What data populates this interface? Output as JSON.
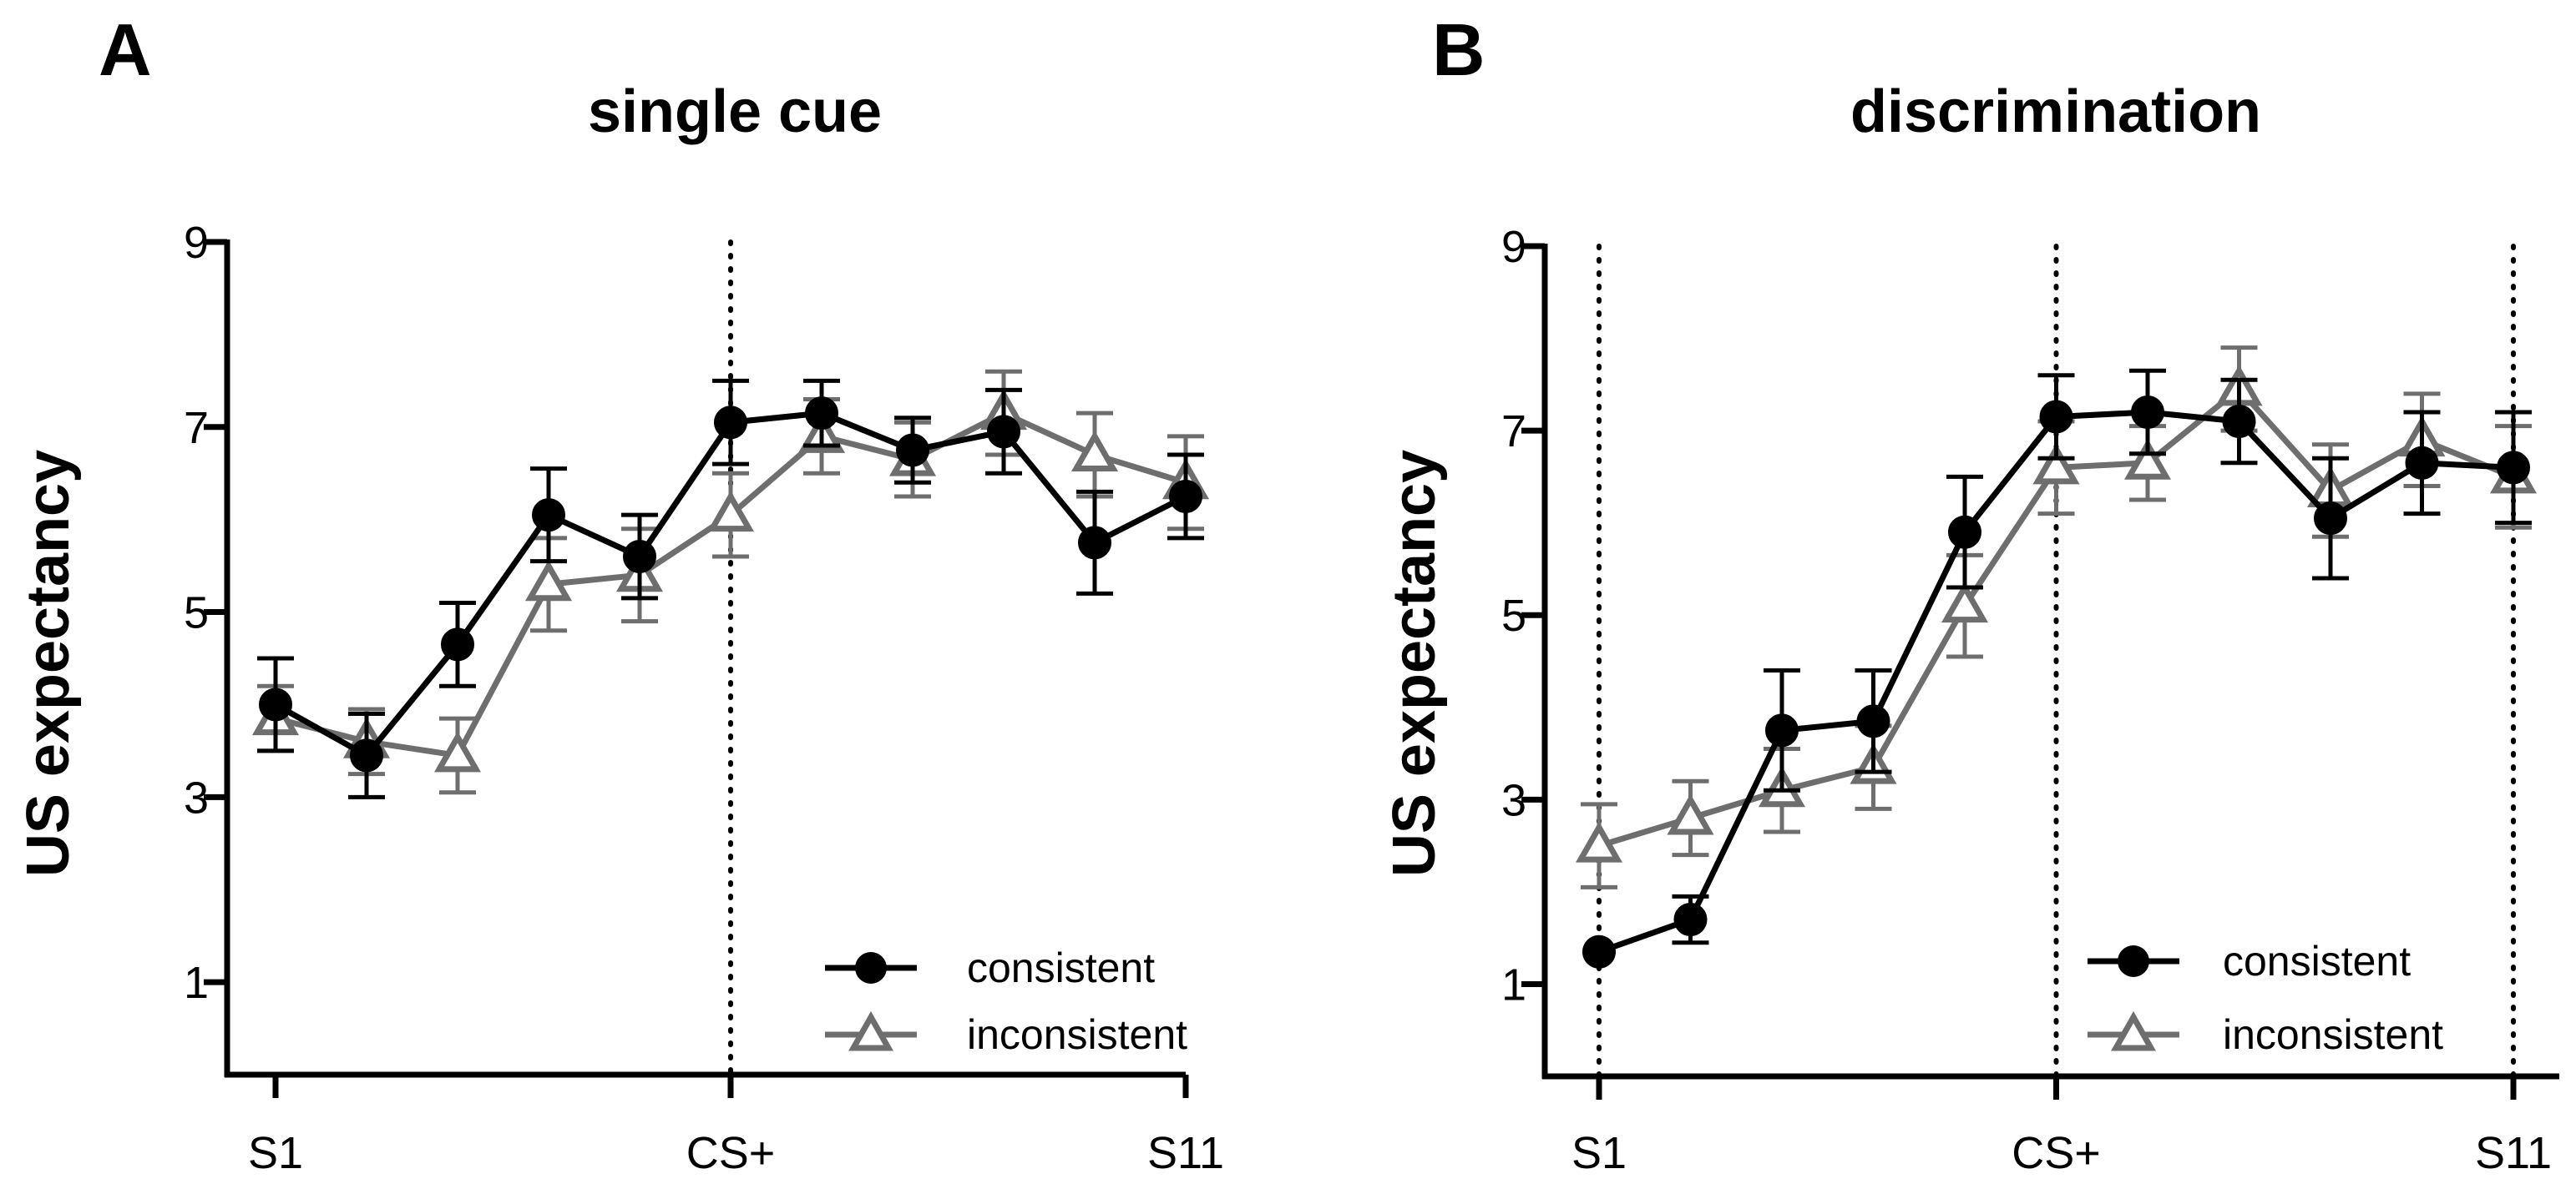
{
  "colors": {
    "consistent": "#000000",
    "inconsistent": "#6e6e6e",
    "axis": "#000000"
  },
  "chart_data": [
    {
      "panel": "A",
      "type": "line",
      "title": "single cue",
      "ylabel": "US expectancy",
      "xlabel": "",
      "ylim": [
        0,
        9
      ],
      "yticks": [
        1,
        3,
        5,
        7,
        9
      ],
      "x": [
        1,
        2,
        3,
        4,
        5,
        6,
        7,
        8,
        9,
        10,
        11
      ],
      "xlim": [
        1,
        11
      ],
      "xtick_labels": [
        {
          "x": 1,
          "label": "S1"
        },
        {
          "x": 6,
          "label": "CS+"
        },
        {
          "x": 11,
          "label": "S11"
        }
      ],
      "reference_lines": [
        6
      ],
      "legend_position": "bottom-right",
      "series": [
        {
          "name": "consistent",
          "marker": "circle",
          "color": "#000000",
          "values": [
            4.0,
            3.45,
            4.65,
            6.05,
            5.6,
            7.05,
            7.15,
            6.75,
            6.95,
            5.75,
            6.25
          ],
          "errors": [
            0.5,
            0.45,
            0.45,
            0.5,
            0.45,
            0.45,
            0.35,
            0.35,
            0.45,
            0.55,
            0.45
          ]
        },
        {
          "name": "inconsistent",
          "marker": "triangle",
          "color": "#6e6e6e",
          "values": [
            3.85,
            3.6,
            3.45,
            5.3,
            5.4,
            6.05,
            6.9,
            6.65,
            7.15,
            6.7,
            6.4
          ],
          "errors": [
            0.35,
            0.35,
            0.4,
            0.5,
            0.5,
            0.45,
            0.4,
            0.4,
            0.45,
            0.45,
            0.5
          ]
        }
      ]
    },
    {
      "panel": "B",
      "type": "line",
      "title": "discrimination",
      "ylabel": "US expectancy",
      "xlabel": "",
      "ylim": [
        0,
        9
      ],
      "yticks": [
        1,
        3,
        5,
        7,
        9
      ],
      "x": [
        1,
        2,
        3,
        4,
        5,
        6,
        7,
        8,
        9,
        10,
        11
      ],
      "xlim": [
        1,
        11
      ],
      "xtick_labels": [
        {
          "x": 1,
          "label": "S1"
        },
        {
          "x": 6,
          "label": "CS+"
        },
        {
          "x": 11,
          "label": "S11"
        }
      ],
      "reference_lines": [
        1,
        6,
        11
      ],
      "legend_position": "bottom-right",
      "series": [
        {
          "name": "consistent",
          "marker": "circle",
          "color": "#000000",
          "values": [
            1.35,
            1.7,
            3.75,
            3.85,
            5.9,
            7.15,
            7.2,
            7.1,
            6.05,
            6.65,
            6.6
          ],
          "errors": [
            0.0,
            0.25,
            0.65,
            0.55,
            0.6,
            0.45,
            0.45,
            0.45,
            0.65,
            0.55,
            0.6
          ]
        },
        {
          "name": "inconsistent",
          "marker": "triangle",
          "color": "#6e6e6e",
          "values": [
            2.5,
            2.8,
            3.1,
            3.35,
            5.1,
            6.6,
            6.65,
            7.45,
            6.35,
            6.9,
            6.5
          ],
          "errors": [
            0.45,
            0.4,
            0.45,
            0.45,
            0.55,
            0.5,
            0.4,
            0.45,
            0.5,
            0.5,
            0.55
          ]
        }
      ]
    }
  ]
}
